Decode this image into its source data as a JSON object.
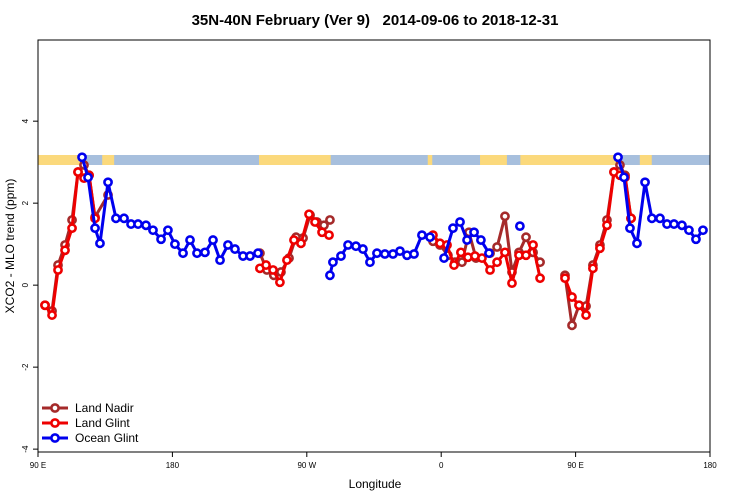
{
  "chart_data": {
    "type": "line",
    "title": "35N-40N February (Ver 9)   2014-09-06 to 2018-12-31",
    "x_label": "Longitude",
    "y_label": "XCO2 - MLO trend (ppm)",
    "xlim": [
      90,
      540
    ],
    "ylim": [
      -4.07,
      5.98
    ],
    "xticks": [
      {
        "value": 90,
        "label": "90 E"
      },
      {
        "value": 180,
        "label": "180"
      },
      {
        "value": 270,
        "label": "90 W"
      },
      {
        "value": 360,
        "label": "0"
      },
      {
        "value": 450,
        "label": "90 E"
      },
      {
        "value": 540,
        "label": "180"
      }
    ],
    "yticks": [
      -4,
      -2,
      0,
      2,
      4
    ],
    "legend": "bottom-left",
    "land_color": "#fbd97c",
    "ocean_color": "#a7bfdd",
    "land": [
      [
        90,
        120
      ],
      [
        133,
        141
      ],
      [
        238,
        286
      ],
      [
        351,
        354
      ],
      [
        386,
        404
      ],
      [
        413,
        480
      ],
      [
        493,
        501
      ]
    ],
    "series": [
      {
        "name": "Land Nadir",
        "color": "#a52a2a",
        "x": [
          94.7,
          99.4,
          103.4,
          108.1,
          112.8,
          116.8,
          120.8,
          124.2,
          128.2,
          136.9,
          null,
          238.6,
          243.3,
          247.9,
          252.7,
          258.1,
          262.8,
          267.5,
          272.2,
          276.8,
          281.5,
          285.5,
          null,
          354.5,
          359.2,
          364.5,
          369.2,
          373.9,
          378.6,
          383.3,
          392.7,
          397.4,
          402.7,
          407.4,
          412.1,
          416.8,
          421.5,
          426.2,
          null,
          442.9,
          447.6,
          452.3,
          457.0,
          461.6,
          466.3,
          471.0,
          475.7,
          479.7,
          483.1,
          487.1
        ],
        "values": [
          -0.49,
          -0.63,
          0.49,
          0.98,
          1.59,
          2.76,
          2.93,
          2.68,
          1.66,
          2.2,
          null,
          0.78,
          0.37,
          0.24,
          0.32,
          0.66,
          1.17,
          1.15,
          1.71,
          1.54,
          1.46,
          1.59,
          null,
          1.07,
          0.98,
          0.73,
          0.56,
          0.56,
          1.29,
          0.66,
          0.78,
          0.93,
          1.68,
          0.32,
          0.8,
          1.17,
          0.8,
          0.56,
          null,
          0.24,
          -0.98,
          -0.49,
          -0.51,
          0.49,
          0.98,
          1.59,
          2.76,
          2.93,
          2.68,
          1.63
        ]
      },
      {
        "name": "Land Glint",
        "color": "#ee0000",
        "x": [
          94.7,
          99.4,
          103.4,
          108.1,
          112.8,
          116.8,
          120.8,
          124.2,
          128.2,
          null,
          238.6,
          242.7,
          247.4,
          252.0,
          256.7,
          261.4,
          266.1,
          271.5,
          275.5,
          280.2,
          284.9,
          null,
          354.5,
          359.2,
          363.9,
          368.6,
          373.2,
          377.9,
          382.6,
          387.3,
          392.7,
          397.4,
          402.7,
          407.4,
          412.1,
          416.8,
          421.5,
          426.2,
          null,
          442.9,
          447.6,
          452.3,
          457.0,
          461.6,
          466.3,
          471.0,
          475.7,
          479.7,
          483.1,
          487.1
        ],
        "values": [
          -0.49,
          -0.73,
          0.37,
          0.85,
          1.39,
          2.76,
          2.61,
          2.68,
          1.63,
          null,
          0.41,
          0.49,
          0.37,
          0.07,
          0.61,
          1.1,
          1.02,
          1.73,
          1.54,
          1.29,
          1.22,
          null,
          1.22,
          1.02,
          0.98,
          0.49,
          0.8,
          0.68,
          0.71,
          0.66,
          0.37,
          0.56,
          0.8,
          0.05,
          0.73,
          0.73,
          0.98,
          0.17,
          null,
          0.17,
          -0.29,
          -0.49,
          -0.73,
          0.41,
          0.9,
          1.46,
          2.76,
          2.68,
          2.63,
          1.63
        ]
      },
      {
        "name": "Ocean Glint",
        "color": "#0000ee",
        "x": [
          119.5,
          123.5,
          128.2,
          131.5,
          136.9,
          142.2,
          147.6,
          152.3,
          157.0,
          162.3,
          167.0,
          172.4,
          177.0,
          181.7,
          187.1,
          191.8,
          196.5,
          201.8,
          207.2,
          211.9,
          217.2,
          221.9,
          227.3,
          232.0,
          237.3,
          null,
          285.5,
          287.5,
          292.9,
          297.6,
          302.9,
          307.6,
          312.3,
          317.0,
          322.3,
          327.7,
          332.4,
          337.1,
          341.8,
          347.1,
          352.5,
          null,
          361.9,
          367.9,
          372.6,
          377.3,
          382.0,
          386.6,
          392.0,
          null,
          412.7,
          null,
          478.4,
          482.4,
          486.4,
          491.1,
          496.5,
          501.1,
          506.5,
          511.2,
          515.9,
          521.2,
          525.9,
          530.6,
          535.3
        ],
        "values": [
          3.12,
          2.63,
          1.39,
          1.02,
          2.51,
          1.63,
          1.63,
          1.49,
          1.49,
          1.46,
          1.34,
          1.12,
          1.34,
          1.0,
          0.78,
          1.1,
          0.78,
          0.8,
          1.1,
          0.61,
          0.98,
          0.88,
          0.71,
          0.71,
          0.78,
          null,
          0.24,
          0.56,
          0.71,
          0.98,
          0.95,
          0.88,
          0.56,
          0.78,
          0.76,
          0.76,
          0.83,
          0.73,
          0.76,
          1.22,
          1.17,
          null,
          0.66,
          1.39,
          1.54,
          1.1,
          1.29,
          1.1,
          0.78,
          null,
          1.44,
          null,
          3.12,
          2.63,
          1.39,
          1.02,
          2.51,
          1.63,
          1.63,
          1.49,
          1.49,
          1.46,
          1.34,
          1.12,
          1.34
        ]
      }
    ]
  }
}
